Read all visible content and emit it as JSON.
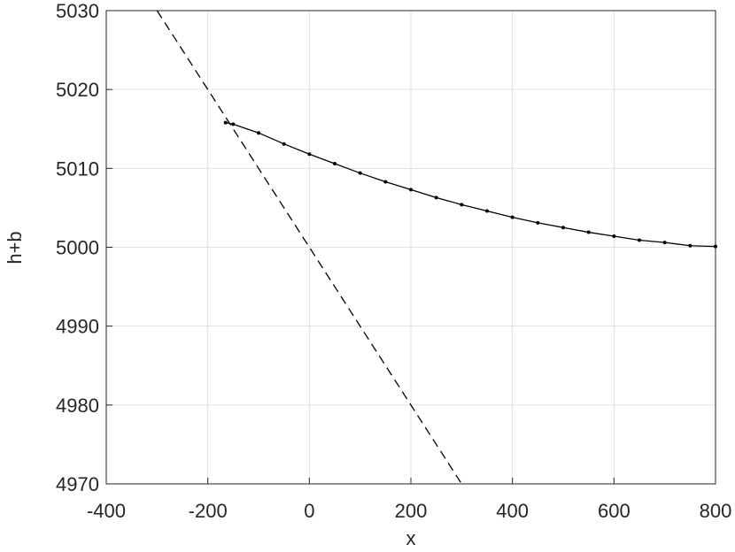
{
  "chart_data": {
    "type": "line",
    "xlabel": "x",
    "ylabel": "h+b",
    "xlim": [
      -400,
      800
    ],
    "xticks": [
      -400,
      -200,
      0,
      200,
      400,
      600,
      800
    ],
    "ylim": [
      4970,
      5030
    ],
    "yticks": [
      4970,
      4980,
      4990,
      5000,
      5010,
      5020,
      5030
    ],
    "grid": true,
    "series": [
      {
        "color": "#000000",
        "line_style": "dashed",
        "marker": "none",
        "x": [
          -300,
          300
        ],
        "values": [
          5030,
          4970
        ]
      },
      {
        "color": "#000000",
        "line_style": "solid",
        "marker": "dot",
        "x": [
          -165,
          -150,
          -100,
          -50,
          0,
          50,
          100,
          150,
          200,
          250,
          300,
          350,
          400,
          450,
          500,
          550,
          600,
          650,
          700,
          750,
          800
        ],
        "values": [
          5015.8,
          5015.6,
          5014.5,
          5013.1,
          5011.8,
          5010.6,
          5009.4,
          5008.3,
          5007.3,
          5006.3,
          5005.4,
          5004.6,
          5003.8,
          5003.1,
          5002.5,
          5001.9,
          5001.4,
          5000.9,
          5000.6,
          5000.2,
          5000.1
        ]
      }
    ]
  }
}
